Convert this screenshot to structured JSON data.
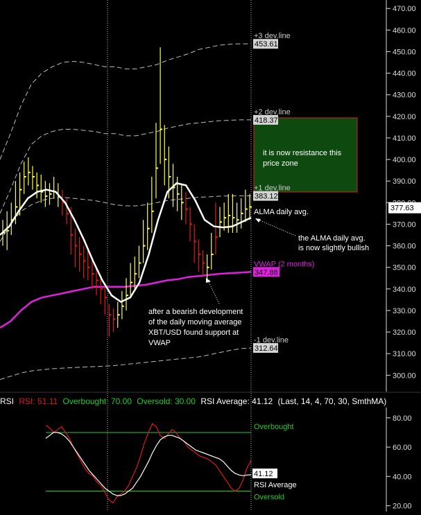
{
  "colors": {
    "background": "#000000",
    "bull_bar": "#ffff4d",
    "bear_bar": "#e01a1a",
    "alma": "#ffffff",
    "vwap": "#e020e0",
    "dev_line": "#bdbdbd",
    "rsi_line": "#e01a1a",
    "rsi_avg": "#ffffff",
    "ob_os_line": "#1fd11f",
    "resistance_zone": "#0e4a10",
    "resistance_border": "#d42020"
  },
  "chart_data": {
    "type": "line",
    "price_axis": {
      "ticks": [
        "470.00",
        "460.00",
        "450.00",
        "440.00",
        "430.00",
        "420.00",
        "410.00",
        "400.00",
        "390.00",
        "380.00",
        "370.00",
        "360.00",
        "350.00",
        "340.00",
        "330.00",
        "320.00",
        "310.00",
        "300.00"
      ],
      "ylim": [
        294,
        472
      ],
      "last_price": "377.63"
    },
    "bands": [
      {
        "label": "+3 dev.line",
        "value_label": "453.61",
        "value": 453.61,
        "values": [
          400,
          412,
          425,
          435,
          440,
          443,
          445,
          445.5,
          445,
          444,
          443,
          443,
          442,
          442,
          443,
          444,
          446,
          447.5,
          449,
          451,
          452,
          453,
          453.4,
          453.61,
          453.61
        ]
      },
      {
        "label": "+2 dev.line",
        "value_label": "418.37",
        "value": 418.37,
        "values": [
          375,
          386,
          398,
          407,
          411,
          413,
          414,
          414,
          413.5,
          413,
          412,
          412,
          411,
          411,
          412,
          413,
          414.5,
          415.5,
          416.5,
          417,
          417.5,
          418,
          418.2,
          418.37,
          418.37
        ]
      },
      {
        "label": "+1 dev.line",
        "value_label": "383.12",
        "value": 383.12,
        "values": [
          362,
          370,
          376,
          379,
          381,
          382,
          382.5,
          382,
          381.5,
          381,
          380,
          379,
          378.5,
          378.5,
          379,
          380,
          381,
          381.5,
          382,
          382.5,
          382.7,
          383,
          383.1,
          383.12,
          383.12
        ]
      },
      {
        "label": "-1 dev.line",
        "value_label": "312.64",
        "value": 312.64,
        "values": [
          298,
          299.5,
          301,
          302,
          302.5,
          303,
          303.3,
          303.5,
          303.8,
          304,
          304.2,
          304.5,
          305,
          305.5,
          306,
          306.5,
          307,
          307.5,
          308,
          308.5,
          309.5,
          310.5,
          311.5,
          312.3,
          312.64
        ]
      }
    ],
    "vwap": {
      "label": "VWAP (2 months)",
      "value_label": "347.88",
      "value": 347.88,
      "values": [
        322,
        325,
        330,
        334,
        336,
        337,
        338,
        339,
        340,
        341,
        341,
        341,
        341,
        341.5,
        342,
        343,
        344,
        344.5,
        345.5,
        346,
        346.5,
        347,
        347.3,
        347.6,
        347.88
      ]
    },
    "alma": {
      "label": "ALMA daily avg.",
      "values": [
        365,
        369,
        376,
        382,
        385,
        386,
        385,
        380,
        372,
        363,
        353,
        344,
        337,
        334,
        336,
        343,
        356,
        372,
        385,
        389,
        388,
        381,
        372,
        369,
        368.5,
        369,
        371,
        373
      ]
    },
    "candles": {
      "bars": [
        [
          0,
          366,
          360,
          372,
          "u"
        ],
        [
          1,
          367,
          358,
          376,
          "u"
        ],
        [
          2,
          372,
          365,
          380,
          "u"
        ],
        [
          3,
          378,
          370,
          390,
          "u"
        ],
        [
          4,
          386,
          374,
          394,
          "u"
        ],
        [
          5,
          392,
          384,
          399,
          "u"
        ],
        [
          6,
          394,
          388,
          401,
          "u"
        ],
        [
          7,
          392,
          386,
          397,
          "u"
        ],
        [
          8,
          388,
          382,
          394,
          "u"
        ],
        [
          9,
          385,
          380,
          393,
          "u"
        ],
        [
          10,
          383,
          378,
          390,
          "u"
        ],
        [
          11,
          384,
          379,
          389,
          "u"
        ],
        [
          12,
          385,
          382,
          392,
          "u"
        ],
        [
          13,
          383,
          378,
          389,
          "u"
        ],
        [
          14,
          380,
          374,
          386,
          "d"
        ],
        [
          15,
          375,
          370,
          382,
          "d"
        ],
        [
          16,
          365,
          356,
          378,
          "d"
        ],
        [
          17,
          360,
          350,
          368,
          "d"
        ],
        [
          18,
          356,
          348,
          364,
          "d"
        ],
        [
          19,
          353,
          345,
          360,
          "d"
        ],
        [
          20,
          350,
          344,
          358,
          "d"
        ],
        [
          21,
          347,
          340,
          354,
          "d"
        ],
        [
          22,
          344,
          337,
          350,
          "d"
        ],
        [
          23,
          340,
          333,
          346,
          "d"
        ],
        [
          24,
          336,
          328,
          342,
          "d"
        ],
        [
          25,
          328,
          318,
          333,
          "d"
        ],
        [
          26,
          326,
          320,
          331,
          "d"
        ],
        [
          27,
          328,
          322,
          334,
          "u"
        ],
        [
          28,
          332,
          326,
          339,
          "u"
        ],
        [
          29,
          337,
          330,
          345,
          "u"
        ],
        [
          30,
          343,
          336,
          352,
          "u"
        ],
        [
          31,
          347,
          340,
          355,
          "u"
        ],
        [
          32,
          352,
          345,
          360,
          "u"
        ],
        [
          33,
          360,
          352,
          372,
          "u"
        ],
        [
          34,
          368,
          358,
          380,
          "u"
        ],
        [
          35,
          376,
          366,
          392,
          "u"
        ],
        [
          36,
          396,
          382,
          417,
          "u"
        ],
        [
          37,
          414,
          398,
          452,
          "u"
        ],
        [
          38,
          400,
          388,
          416,
          "u"
        ],
        [
          39,
          392,
          382,
          406,
          "u"
        ],
        [
          40,
          387,
          378,
          398,
          "u"
        ],
        [
          41,
          384,
          376,
          392,
          "u"
        ],
        [
          42,
          380,
          372,
          388,
          "u"
        ],
        [
          43,
          377,
          370,
          385,
          "d"
        ],
        [
          44,
          370,
          362,
          378,
          "d"
        ],
        [
          45,
          362,
          352,
          370,
          "d"
        ],
        [
          46,
          356,
          348,
          363,
          "d"
        ],
        [
          47,
          352,
          346,
          358,
          "d"
        ],
        [
          48,
          350,
          344,
          356,
          "u"
        ],
        [
          49,
          356,
          349,
          366,
          "u"
        ],
        [
          50,
          364,
          356,
          380,
          "d"
        ],
        [
          51,
          371,
          364,
          378,
          "u"
        ],
        [
          52,
          373,
          367,
          380,
          "u"
        ],
        [
          53,
          374,
          366,
          384,
          "u"
        ],
        [
          54,
          373,
          366,
          384,
          "u"
        ],
        [
          55,
          372,
          366,
          380,
          "u"
        ],
        [
          56,
          375,
          368,
          382,
          "u"
        ],
        [
          57,
          377,
          371,
          386,
          "u"
        ],
        [
          58,
          378,
          372,
          384,
          "u"
        ]
      ]
    },
    "annotations": {
      "resistance": "it is now resistance this price zone",
      "alma_note": "the ALMA daily avg. is now slightly bullish",
      "vwap_note": "after a bearish development of the daily moving average XBT/USD found support at VWAP"
    },
    "rsi": {
      "header": {
        "name": "RSI",
        "rsi": "RSI: 51.11",
        "overbought": "Overbought: 70.00",
        "oversold": "Oversold: 30.00",
        "average": "RSI Average: 41.12",
        "params": "(Last, 14, 4, 70, 30, SmthMA)"
      },
      "axis_ticks": [
        "80.00",
        "60.00",
        "40.00",
        "20.00"
      ],
      "ylim": [
        17,
        87
      ],
      "overbought": 70,
      "oversold": 30,
      "overbought_label": "Overbought",
      "oversold_label": "Oversold",
      "average_label": "RSI Average",
      "average_value_label": "41.12",
      "rsi_values": [
        75,
        73,
        70,
        72,
        74,
        70,
        66,
        60,
        55,
        50,
        45,
        42,
        40,
        36,
        34,
        29,
        24,
        22,
        26,
        28,
        30,
        34,
        40,
        46,
        54,
        63,
        70,
        76,
        74,
        68,
        66,
        69,
        72,
        70,
        66,
        64,
        60,
        58,
        56,
        54,
        53,
        52,
        50,
        48,
        44,
        40,
        36,
        32,
        30,
        32,
        38,
        46,
        51
      ],
      "avg_values": [
        66,
        68,
        70,
        70,
        69,
        67,
        64,
        60,
        56,
        52,
        48,
        44,
        41,
        38,
        35,
        32,
        30,
        28,
        27,
        27,
        28,
        30,
        32,
        36,
        40,
        45,
        50,
        56,
        61,
        65,
        67,
        68,
        68,
        67,
        66,
        64,
        62,
        60,
        58,
        57,
        56,
        55,
        54,
        53,
        52,
        50,
        47,
        44,
        42,
        41,
        40.5,
        41,
        41.12
      ]
    },
    "time_dividers": 2
  }
}
